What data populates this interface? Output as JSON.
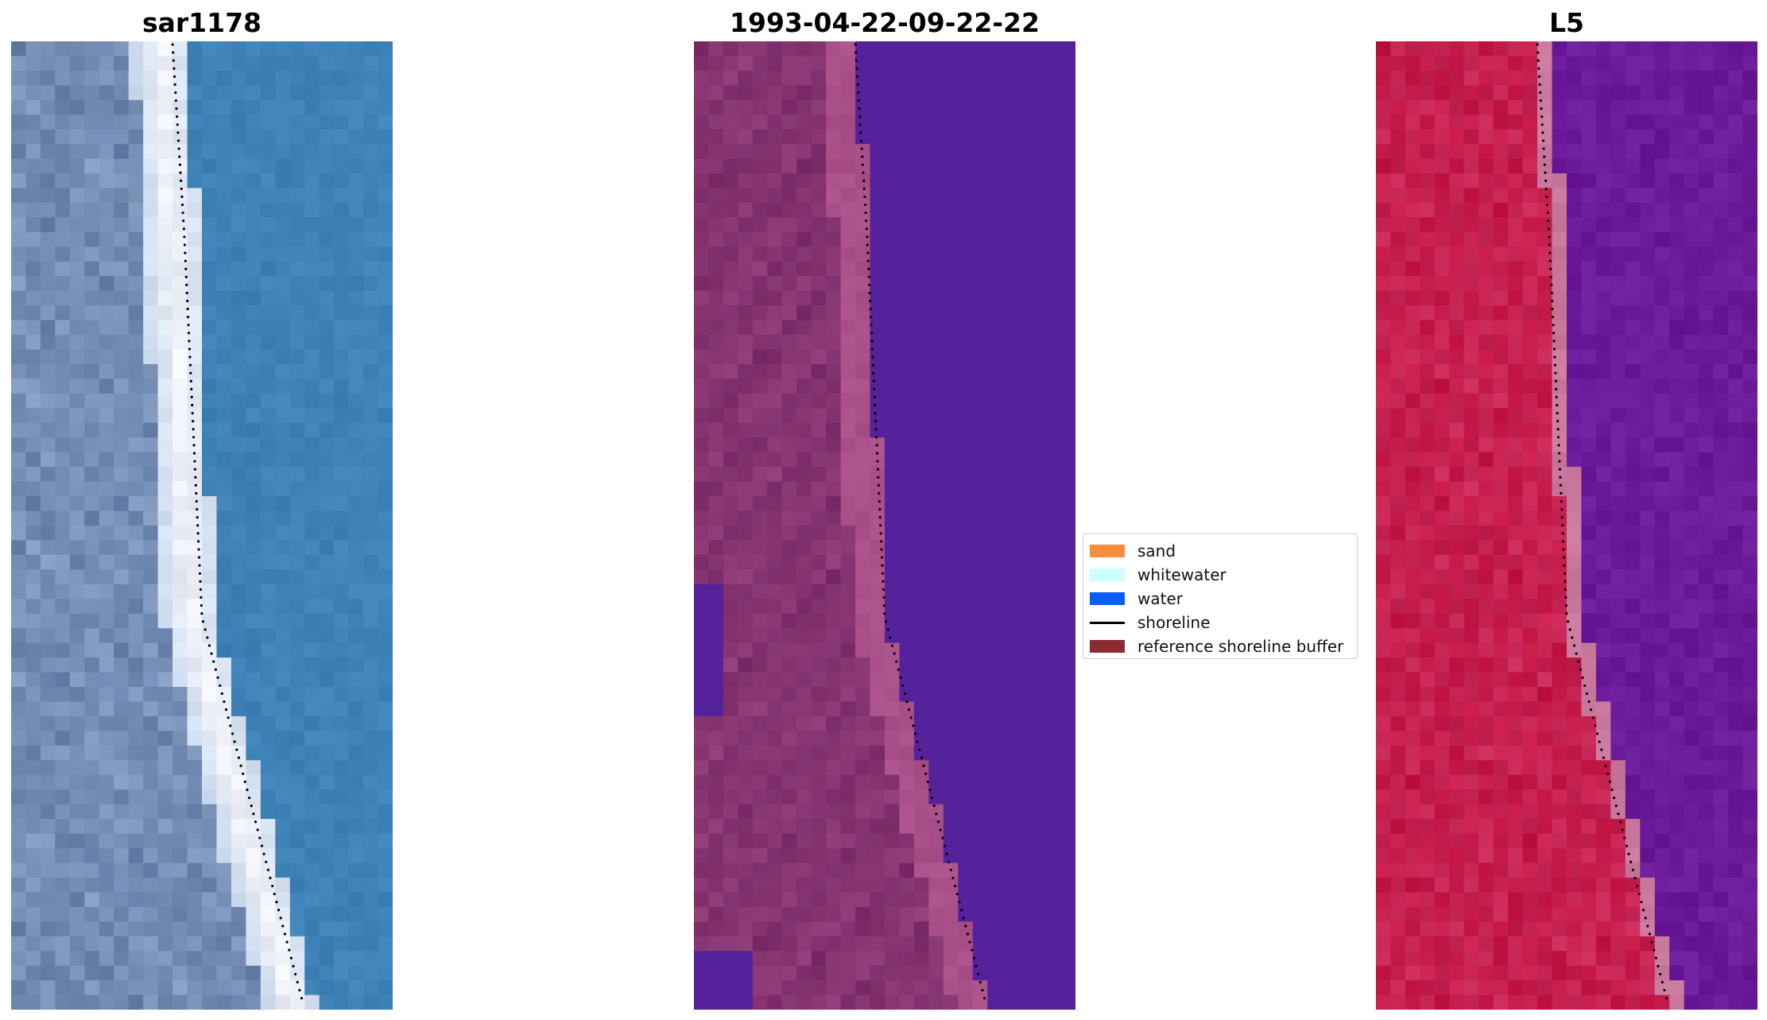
{
  "panels": [
    {
      "id": "sar",
      "title": "sar1178"
    },
    {
      "id": "classified",
      "title": "1993-04-22-09-22-22"
    },
    {
      "id": "sensor",
      "title": "L5"
    }
  ],
  "legend": {
    "items": [
      {
        "label": "sand",
        "color": "#f98b3b",
        "kind": "patch"
      },
      {
        "label": "whitewater",
        "color": "#ccffff",
        "kind": "patch"
      },
      {
        "label": "water",
        "color": "#0b5cf0",
        "kind": "patch"
      },
      {
        "label": "shoreline",
        "color": "#000000",
        "kind": "line"
      },
      {
        "label": "reference shoreline buffer",
        "color": "#8b2b33",
        "kind": "patch"
      }
    ]
  },
  "colors": {
    "sar_water": "#3c7fb6",
    "sar_whitewater": "#f4f4fb",
    "sar_land": "#6b84ae",
    "classified_water": "#54229a",
    "classified_sand": "#a9508a",
    "classified_land": "#7e2e6c",
    "sensor_land": "#c41745",
    "sensor_water": "#6b1a9a",
    "sensor_border": "#c9789d"
  }
}
